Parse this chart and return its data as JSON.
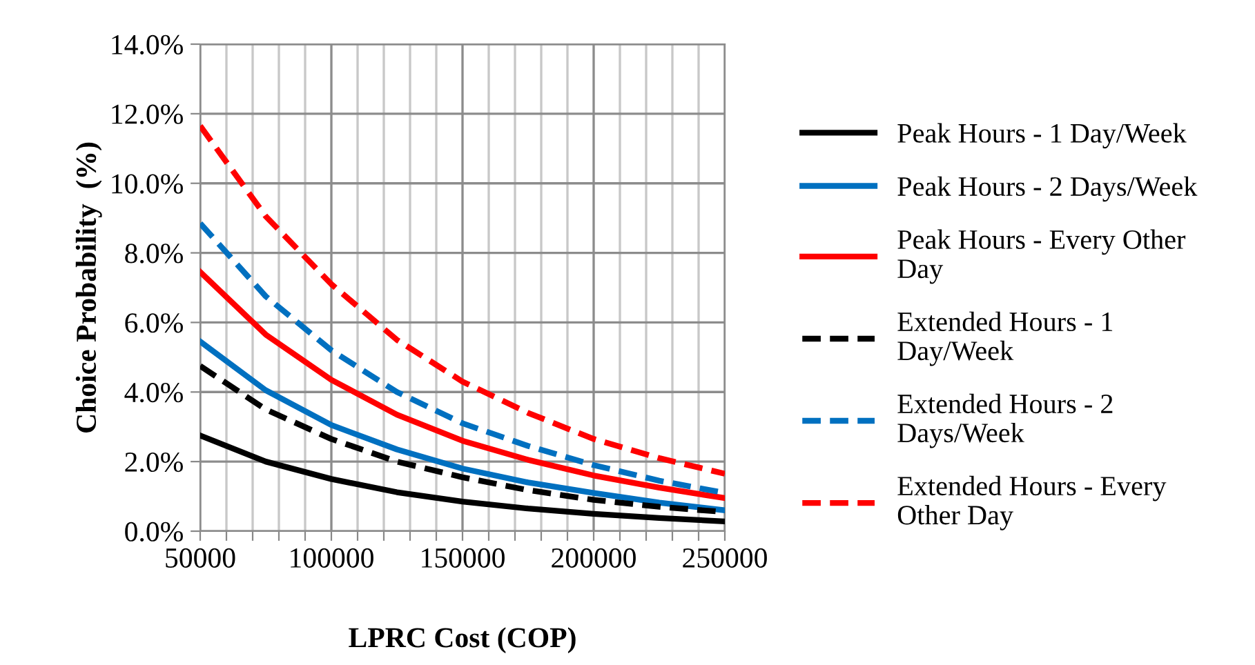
{
  "chart_data": {
    "type": "line",
    "xlabel": "LPRC Cost (COP)",
    "ylabel": "Choice Probability  (%)",
    "x": [
      50000,
      75000,
      100000,
      125000,
      150000,
      175000,
      200000,
      225000,
      250000
    ],
    "xlim": [
      50000,
      250000
    ],
    "xticks": [
      50000,
      {
        "value": 60000,
        "label": null
      },
      {
        "value": 70000,
        "label": null
      },
      {
        "value": 80000,
        "label": null
      },
      {
        "value": 90000,
        "label": null
      },
      100000,
      {
        "value": 110000,
        "label": null
      },
      {
        "value": 120000,
        "label": null
      },
      {
        "value": 130000,
        "label": null
      },
      {
        "value": 140000,
        "label": null
      },
      150000,
      {
        "value": 160000,
        "label": null
      },
      {
        "value": 170000,
        "label": null
      },
      {
        "value": 180000,
        "label": null
      },
      {
        "value": 190000,
        "label": null
      },
      200000,
      {
        "value": 210000,
        "label": null
      },
      {
        "value": 220000,
        "label": null
      },
      {
        "value": 230000,
        "label": null
      },
      {
        "value": 240000,
        "label": null
      },
      250000
    ],
    "ylim": [
      0,
      14
    ],
    "yticks": [
      {
        "value": 0,
        "label": "0.0%"
      },
      {
        "value": 2,
        "label": "2.0%"
      },
      {
        "value": 4,
        "label": "4.0%"
      },
      {
        "value": 6,
        "label": "6.0%"
      },
      {
        "value": 8,
        "label": "8.0%"
      },
      {
        "value": 10,
        "label": "10.0%"
      },
      {
        "value": 12,
        "label": "12.0%"
      },
      {
        "value": 14,
        "label": "14.0%"
      }
    ],
    "grid": true,
    "legend": "right",
    "marker": "none",
    "series": [
      {
        "name": "Peak Hours - 1 Day/Week",
        "color": "#000000",
        "line_style": "solid",
        "values": [
          2.75,
          2.0,
          1.5,
          1.12,
          0.85,
          0.65,
          0.5,
          0.38,
          0.28
        ]
      },
      {
        "name": "Peak Hours - 2 Days/Week",
        "color": "#0070c0",
        "line_style": "solid",
        "values": [
          5.45,
          4.05,
          3.05,
          2.35,
          1.8,
          1.4,
          1.1,
          0.82,
          0.6
        ]
      },
      {
        "name": "Peak Hours - Every Other\nDay",
        "color": "#ff0000",
        "line_style": "solid",
        "values": [
          7.45,
          5.65,
          4.35,
          3.35,
          2.6,
          2.05,
          1.6,
          1.25,
          0.95
        ]
      },
      {
        "name": "Extended Hours - 1\nDay/Week",
        "color": "#000000",
        "line_style": "dashed",
        "values": [
          4.75,
          3.5,
          2.65,
          2.0,
          1.55,
          1.18,
          0.9,
          0.7,
          0.55
        ]
      },
      {
        "name": "Extended Hours - 2\nDays/Week",
        "color": "#0070c0",
        "line_style": "dashed",
        "values": [
          8.85,
          6.75,
          5.2,
          4.0,
          3.1,
          2.45,
          1.9,
          1.45,
          1.1
        ]
      },
      {
        "name": "Extended Hours - Every\nOther Day",
        "color": "#ff0000",
        "line_style": "dashed",
        "values": [
          11.65,
          9.05,
          7.1,
          5.5,
          4.3,
          3.4,
          2.65,
          2.1,
          1.65
        ]
      }
    ]
  }
}
